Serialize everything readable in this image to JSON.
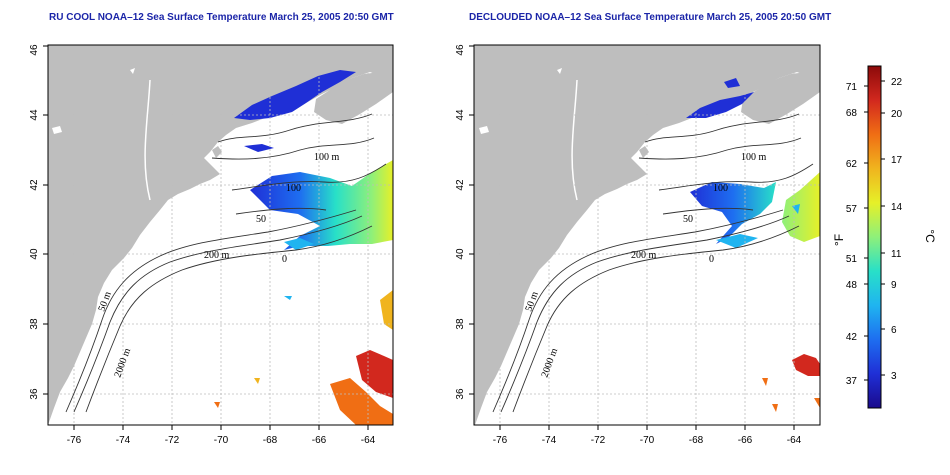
{
  "left_panel": {
    "title": "RU COOL NOAA–12 Sea Surface Temperature March 25, 2005 20:50 GMT",
    "contour_labels": [
      "100 m",
      "100",
      "50",
      "200 m",
      "50 m",
      "2000 m",
      "0"
    ]
  },
  "right_panel": {
    "title": "DECLOUDED NOAA–12 Sea Surface Temperature March 25, 2005 20:50 GMT",
    "contour_labels": [
      "100 m",
      "100",
      "50",
      "200 m",
      "50 m",
      "2000 m",
      "0"
    ]
  },
  "axes": {
    "lon_ticks": [
      "-76",
      "-74",
      "-72",
      "-70",
      "-68",
      "-66",
      "-64"
    ],
    "lat_ticks": [
      "36",
      "38",
      "40",
      "42",
      "44",
      "46"
    ]
  },
  "colorbar": {
    "fahrenheit_ticks": [
      "37",
      "42",
      "48",
      "51",
      "57",
      "62",
      "68",
      "71"
    ],
    "celsius_ticks": [
      "3",
      "6",
      "9",
      "11",
      "14",
      "17",
      "20",
      "22"
    ],
    "fahrenheit_label": "°F",
    "celsius_label": "°C",
    "colors": [
      "#1a0a8c",
      "#1f2fd6",
      "#1e6ef0",
      "#1fb4f0",
      "#28e0c8",
      "#8ef07a",
      "#e6f028",
      "#f0b41e",
      "#f06e14",
      "#d2281e",
      "#8c0a0a"
    ]
  },
  "colors": {
    "land": "#bebebe",
    "ocean": "#ffffff",
    "title": "#1b25a8",
    "grid": "#bdbdbd"
  }
}
